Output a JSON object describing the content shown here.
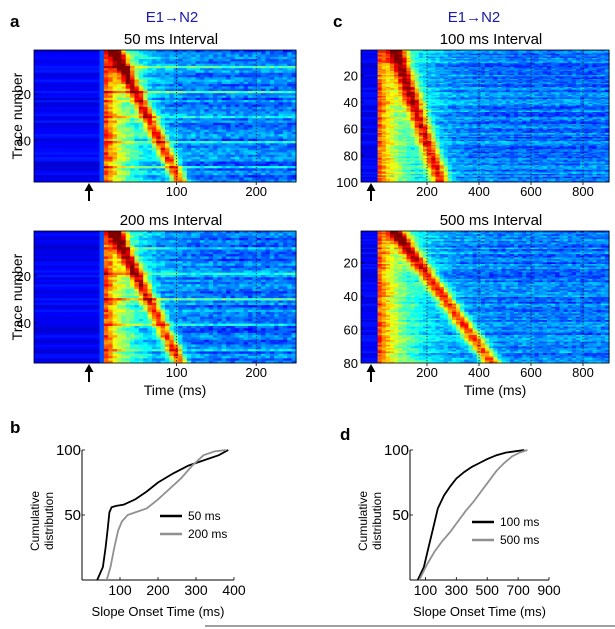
{
  "figure": {
    "panel_labels": [
      "a",
      "c",
      "b",
      "d"
    ],
    "connection_a": "E1→N2",
    "connection_c": "E1→N2"
  },
  "chart_data": [
    {
      "panel": "a",
      "type": "heatmap",
      "title": "50 ms Interval",
      "xlabel": "",
      "ylabel": "Trace number",
      "xlim": [
        -90,
        250
      ],
      "xticks": [
        100,
        200
      ],
      "yticks": [
        20,
        40
      ],
      "ylim": [
        1,
        58
      ],
      "stimulus_marker_x": 0,
      "colors": [
        "#00008f",
        "#0050ff",
        "#00d0ff",
        "#a0ff60",
        "#ffd000",
        "#ff4000",
        "#8f0000"
      ]
    },
    {
      "panel": "a2",
      "type": "heatmap",
      "title": "200 ms Interval",
      "xlabel": "Time (ms)",
      "ylabel": "Trace number",
      "xlim": [
        -90,
        250
      ],
      "xticks": [
        100,
        200
      ],
      "yticks": [
        20,
        40
      ],
      "ylim": [
        1,
        57
      ],
      "stimulus_marker_x": 0
    },
    {
      "panel": "c",
      "type": "heatmap",
      "title": "100 ms Interval",
      "xlabel": "",
      "ylabel": "",
      "xlim": [
        0,
        900
      ],
      "xticks": [
        200,
        400,
        600,
        800
      ],
      "yticks": [
        20,
        40,
        60,
        80,
        100
      ],
      "ylim": [
        1,
        100
      ],
      "stimulus_marker_x": 0
    },
    {
      "panel": "c2",
      "type": "heatmap",
      "title": "500 ms Interval",
      "xlabel": "Time (ms)",
      "ylabel": "",
      "xlim": [
        0,
        900
      ],
      "xticks": [
        200,
        400,
        600,
        800
      ],
      "yticks": [
        20,
        40,
        60,
        80
      ],
      "ylim": [
        1,
        80
      ],
      "stimulus_marker_x": 0
    },
    {
      "panel": "b",
      "type": "line",
      "xlabel": "Slope Onset Time (ms)",
      "ylabel": "Cumulative distribution",
      "xlim": [
        0,
        400
      ],
      "ylim": [
        0,
        100
      ],
      "xticks": [
        100,
        200,
        300,
        400
      ],
      "yticks": [
        50,
        100
      ],
      "series": [
        {
          "name": "50 ms",
          "color": "#000000",
          "x": [
            40,
            55,
            62,
            68,
            72,
            78,
            90,
            110,
            140,
            170,
            200,
            240,
            280,
            320,
            360,
            385
          ],
          "y": [
            0,
            10,
            25,
            40,
            52,
            56,
            57,
            58,
            62,
            68,
            75,
            82,
            88,
            92,
            96,
            100
          ]
        },
        {
          "name": "200 ms",
          "color": "#909090",
          "x": [
            65,
            75,
            85,
            95,
            105,
            120,
            140,
            170,
            200,
            230,
            260,
            290,
            320,
            350,
            380
          ],
          "y": [
            0,
            10,
            25,
            38,
            45,
            50,
            52,
            55,
            62,
            70,
            78,
            88,
            96,
            99,
            100
          ]
        }
      ]
    },
    {
      "panel": "d",
      "type": "line",
      "xlabel": "Slope Onset Time (ms)",
      "ylabel": "Cumulative distribution",
      "xlim": [
        0,
        900
      ],
      "ylim": [
        0,
        100
      ],
      "xticks": [
        100,
        300,
        500,
        700,
        900
      ],
      "yticks": [
        50,
        100
      ],
      "series": [
        {
          "name": "100 ms",
          "color": "#000000",
          "x": [
            50,
            90,
            120,
            150,
            180,
            220,
            260,
            300,
            350,
            400,
            450,
            500,
            560,
            620,
            680,
            740
          ],
          "y": [
            0,
            10,
            25,
            40,
            55,
            65,
            72,
            78,
            83,
            87,
            90,
            93,
            96,
            98,
            99,
            100
          ]
        },
        {
          "name": "500 ms",
          "color": "#909090",
          "x": [
            60,
            110,
            160,
            210,
            260,
            310,
            360,
            410,
            460,
            510,
            560,
            610,
            660,
            710,
            760
          ],
          "y": [
            0,
            12,
            22,
            30,
            37,
            45,
            53,
            60,
            68,
            76,
            84,
            90,
            95,
            98,
            100
          ]
        }
      ]
    }
  ]
}
